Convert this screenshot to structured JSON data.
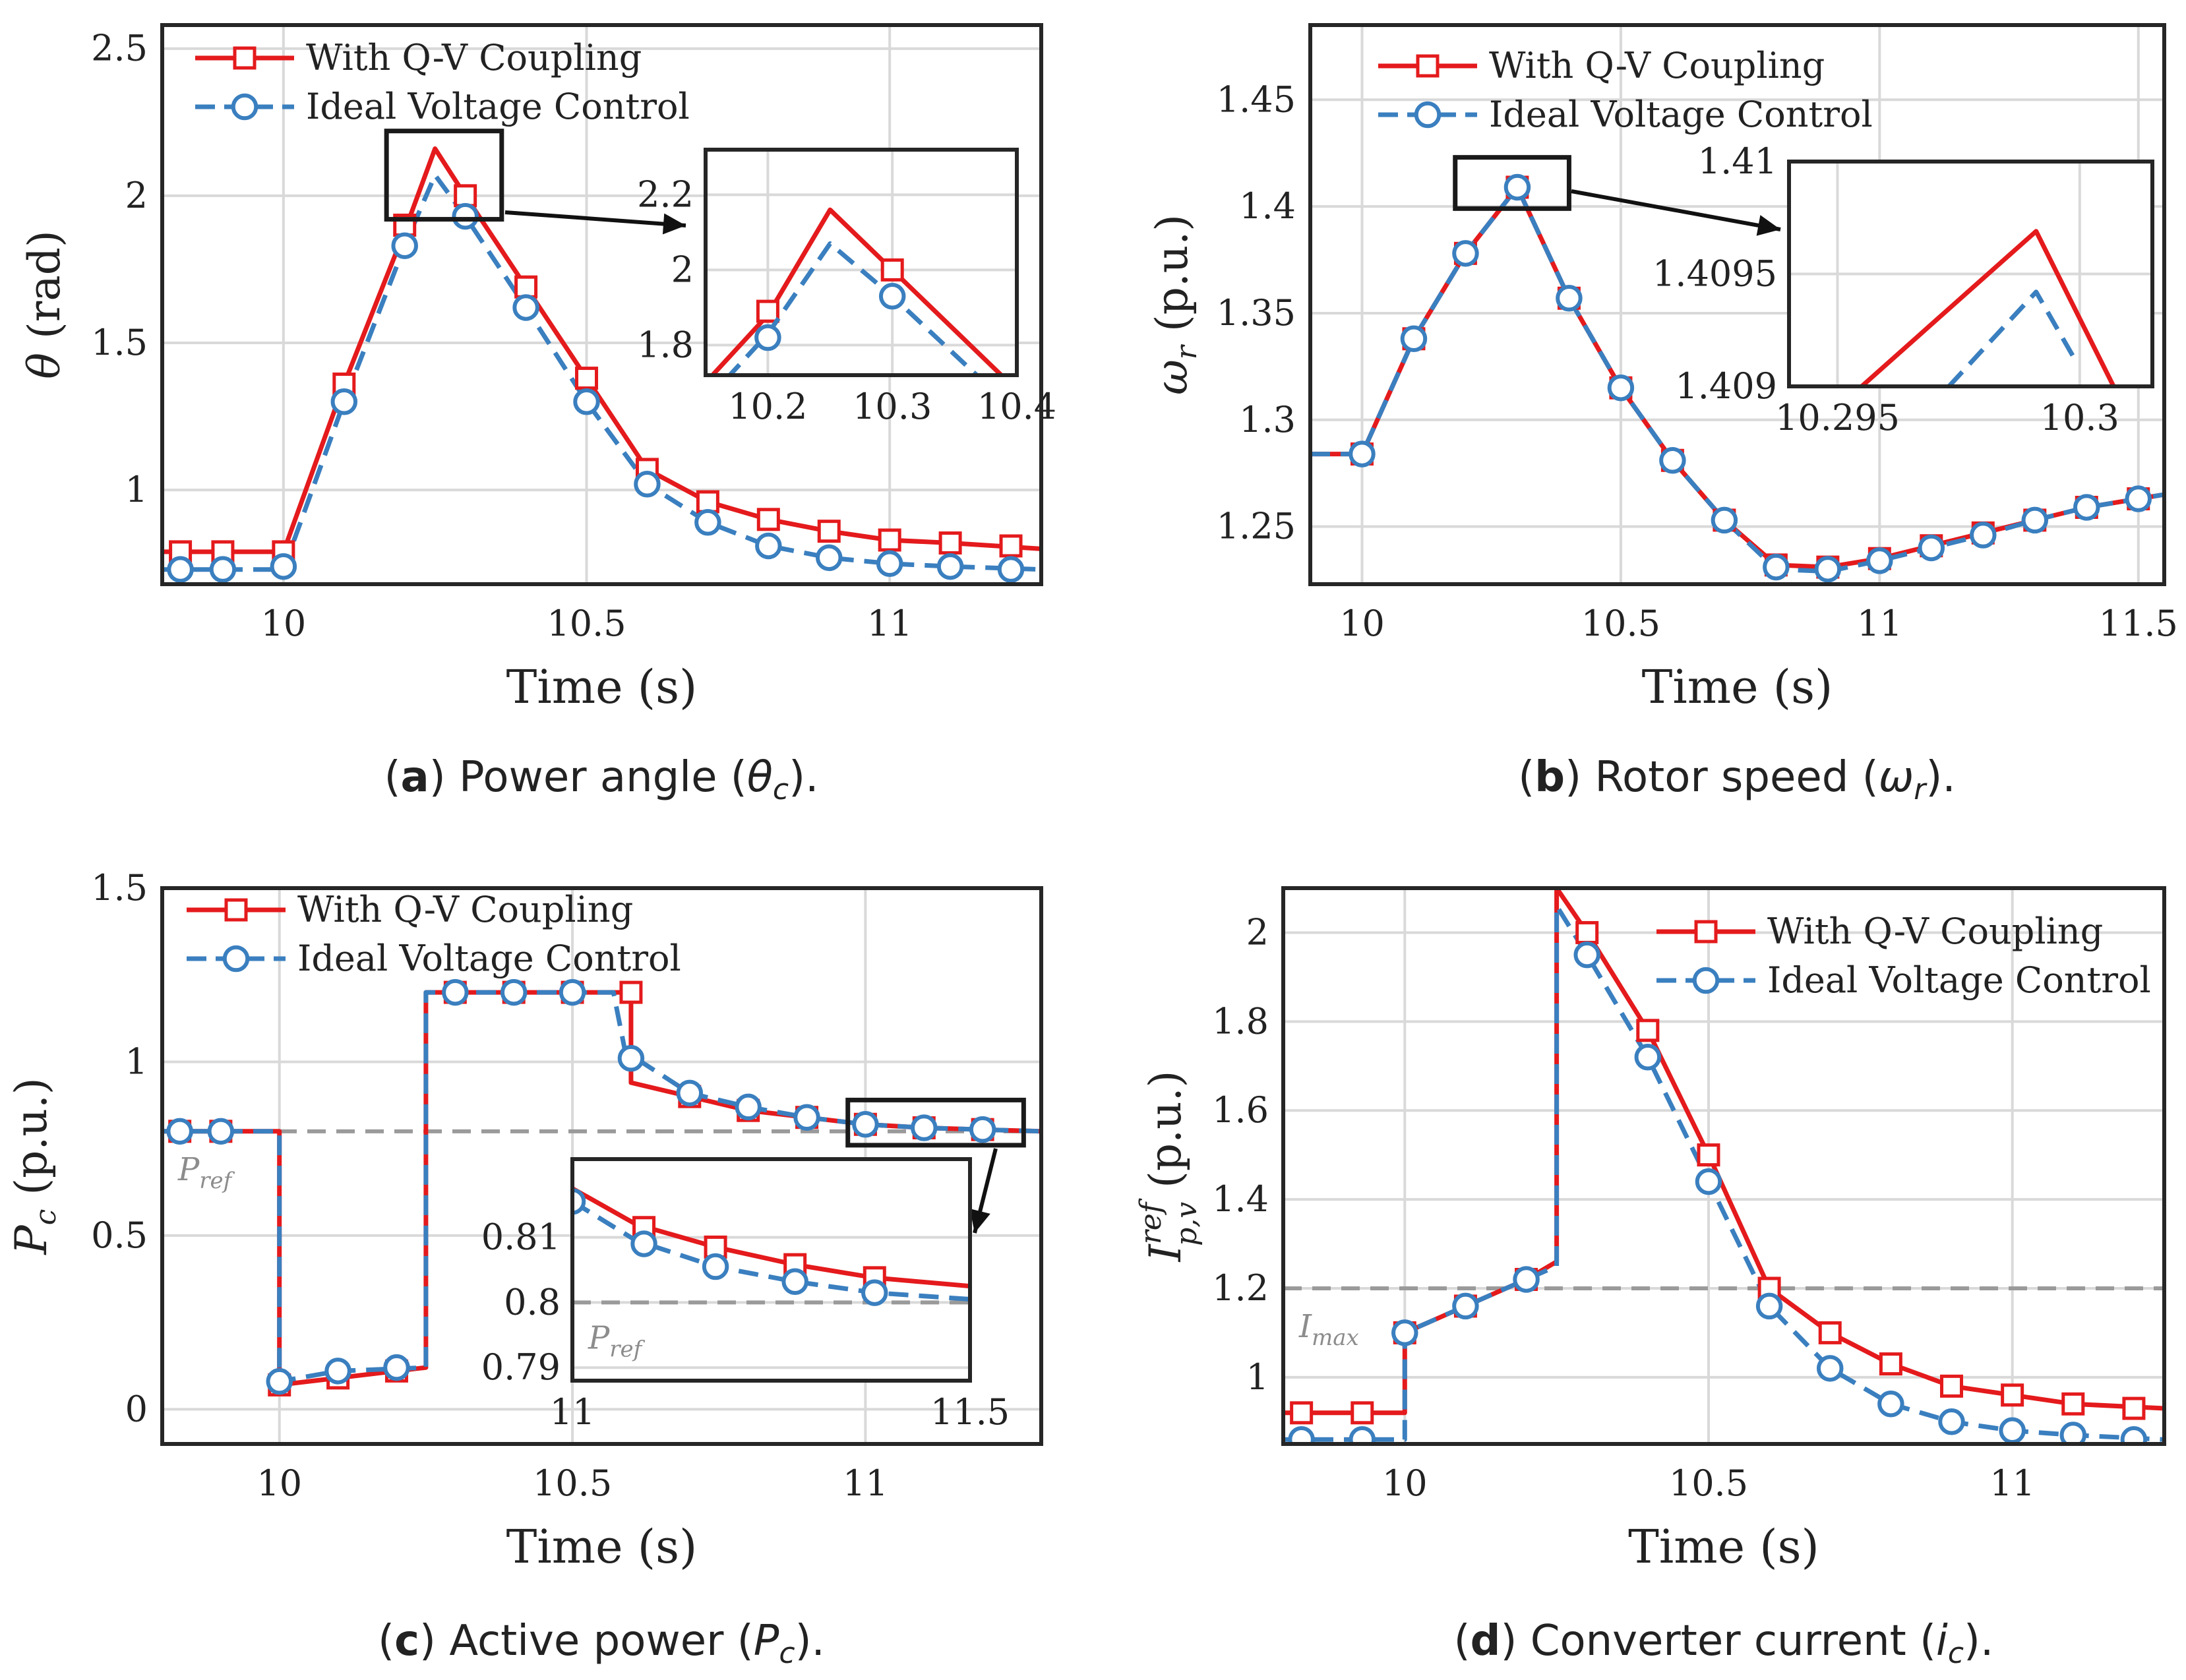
{
  "colors": {
    "coupling": "#e41a1c",
    "ideal": "#3a7fbf",
    "grid": "#d9d9d9",
    "ref_line": "#9a9a9a",
    "axis": "#262626"
  },
  "legend": {
    "coupling": "With Q-V Coupling",
    "ideal": "Ideal Voltage Control"
  },
  "captions": {
    "a": {
      "tag": "(a)",
      "text": " Power angle (",
      "sym": "θ",
      "sub": "c",
      "end": ")."
    },
    "b": {
      "tag": "(b)",
      "text": " Rotor speed (",
      "sym": "ω",
      "sub": "r",
      "end": ")."
    },
    "c": {
      "tag": "(c)",
      "text": " Active power (",
      "sym": "P",
      "sub": "c",
      "end": ")."
    },
    "d": {
      "tag": "(d)",
      "text": " Converter current (",
      "sym": "i",
      "sub": "c",
      "end": ")."
    }
  },
  "chart_data": [
    {
      "id": "a",
      "type": "line",
      "title": "Power angle",
      "xlabel": "Time (s)",
      "ylabel": {
        "sym": "θ",
        "sub": "",
        "unit": " (rad)"
      },
      "xlim": [
        9.8,
        11.25
      ],
      "ylim": [
        0.68,
        2.58
      ],
      "xticks": [
        10,
        10.5,
        11
      ],
      "xticklabels": [
        "10",
        "10.5",
        "11"
      ],
      "yticks": [
        1,
        1.5,
        2,
        2.5
      ],
      "yticklabels": [
        "1",
        "1.5",
        "2",
        "2.5"
      ],
      "legend_loc": "top-left",
      "series": [
        {
          "name": "With Q-V Coupling",
          "style": "solid",
          "marker": "square",
          "x": [
            9.8,
            10.0,
            10.1,
            10.2,
            10.25,
            10.3,
            10.4,
            10.5,
            10.6,
            10.7,
            10.8,
            10.9,
            11.0,
            11.1,
            11.25
          ],
          "y": [
            0.79,
            0.79,
            1.36,
            1.88,
            2.16,
            2.0,
            1.69,
            1.38,
            1.07,
            0.96,
            0.9,
            0.86,
            0.83,
            0.82,
            0.8
          ],
          "markers_x": [
            9.83,
            9.9,
            10.0,
            10.1,
            10.2,
            10.3,
            10.4,
            10.5,
            10.6,
            10.7,
            10.8,
            10.9,
            11.0,
            11.1,
            11.2
          ],
          "markers_y": [
            0.79,
            0.79,
            0.79,
            1.36,
            1.9,
            2.0,
            1.69,
            1.38,
            1.07,
            0.96,
            0.9,
            0.86,
            0.83,
            0.82,
            0.81
          ]
        },
        {
          "name": "Ideal Voltage Control",
          "style": "dashed",
          "marker": "circle",
          "x": [
            9.8,
            10.0,
            10.1,
            10.2,
            10.25,
            10.3,
            10.4,
            10.5,
            10.6,
            10.7,
            10.8,
            10.9,
            11.0,
            11.1,
            11.25
          ],
          "y": [
            0.73,
            0.73,
            1.3,
            1.83,
            2.07,
            1.93,
            1.62,
            1.3,
            1.02,
            0.89,
            0.81,
            0.77,
            0.75,
            0.74,
            0.73
          ],
          "markers_x": [
            9.83,
            9.9,
            10.0,
            10.1,
            10.2,
            10.3,
            10.4,
            10.5,
            10.6,
            10.7,
            10.8,
            10.9,
            11.0,
            11.1,
            11.2
          ],
          "markers_y": [
            0.73,
            0.73,
            0.74,
            1.3,
            1.83,
            1.93,
            1.62,
            1.3,
            1.02,
            0.89,
            0.81,
            0.77,
            0.75,
            0.74,
            0.73
          ]
        }
      ],
      "zoom_box": {
        "x": [
          10.17,
          10.36
        ],
        "y": [
          1.92,
          2.22
        ]
      },
      "inset": {
        "xlim": [
          10.15,
          10.4
        ],
        "ylim": [
          1.72,
          2.32
        ],
        "xticks": [
          10.2,
          10.3,
          10.4
        ],
        "xticklabels": [
          "10.2",
          "10.3",
          "10.4"
        ],
        "yticks": [
          1.8,
          2.0,
          2.2
        ],
        "yticklabels": [
          "1.8",
          "2",
          "2.2"
        ],
        "series": [
          {
            "x": [
              10.15,
              10.2,
              10.25,
              10.3,
              10.4
            ],
            "y": [
              1.7,
              1.88,
              2.16,
              2.0,
              1.68
            ],
            "markers_x": [
              10.2,
              10.3
            ],
            "markers_y": [
              1.89,
              2.0
            ]
          },
          {
            "x": [
              10.15,
              10.2,
              10.25,
              10.3,
              10.4
            ],
            "y": [
              1.65,
              1.83,
              2.07,
              1.93,
              1.62
            ],
            "markers_x": [
              10.2,
              10.3
            ],
            "markers_y": [
              1.82,
              1.93
            ]
          }
        ]
      }
    },
    {
      "id": "b",
      "type": "line",
      "title": "Rotor speed",
      "xlabel": "Time (s)",
      "ylabel": {
        "sym": "ω",
        "sub": "r",
        "unit": " (p.u.)"
      },
      "xlim": [
        9.9,
        11.55
      ],
      "ylim": [
        1.223,
        1.485
      ],
      "xticks": [
        10,
        10.5,
        11,
        11.5
      ],
      "xticklabels": [
        "10",
        "10.5",
        "11",
        "11.5"
      ],
      "yticks": [
        1.25,
        1.3,
        1.35,
        1.4,
        1.45
      ],
      "yticklabels": [
        "1.25",
        "1.3",
        "1.35",
        "1.4",
        "1.45"
      ],
      "legend_loc": "top-left",
      "series": [
        {
          "name": "With Q-V Coupling",
          "style": "solid",
          "marker": "square",
          "x": [
            9.9,
            10.0,
            10.1,
            10.2,
            10.3,
            10.4,
            10.5,
            10.6,
            10.7,
            10.8,
            10.9,
            11.0,
            11.1,
            11.2,
            11.3,
            11.4,
            11.5,
            11.55
          ],
          "y": [
            1.284,
            1.284,
            1.338,
            1.378,
            1.409,
            1.357,
            1.315,
            1.281,
            1.253,
            1.232,
            1.231,
            1.235,
            1.241,
            1.247,
            1.253,
            1.259,
            1.263,
            1.265
          ],
          "markers_x": [
            10.0,
            10.1,
            10.2,
            10.3,
            10.4,
            10.5,
            10.6,
            10.7,
            10.8,
            10.9,
            11.0,
            11.1,
            11.2,
            11.3,
            11.4,
            11.5
          ],
          "markers_y": [
            1.284,
            1.338,
            1.378,
            1.409,
            1.357,
            1.315,
            1.281,
            1.253,
            1.232,
            1.231,
            1.235,
            1.241,
            1.247,
            1.253,
            1.259,
            1.263
          ]
        },
        {
          "name": "Ideal Voltage Control",
          "style": "dashed",
          "marker": "circle",
          "x": [
            9.9,
            10.0,
            10.1,
            10.2,
            10.3,
            10.4,
            10.5,
            10.6,
            10.7,
            10.8,
            10.9,
            11.0,
            11.1,
            11.2,
            11.3,
            11.4,
            11.5,
            11.55
          ],
          "y": [
            1.284,
            1.284,
            1.338,
            1.378,
            1.409,
            1.357,
            1.315,
            1.281,
            1.253,
            1.23,
            1.229,
            1.234,
            1.24,
            1.246,
            1.253,
            1.259,
            1.263,
            1.265
          ],
          "markers_x": [
            10.0,
            10.1,
            10.2,
            10.3,
            10.4,
            10.5,
            10.6,
            10.7,
            10.8,
            10.9,
            11.0,
            11.1,
            11.2,
            11.3,
            11.4,
            11.5
          ],
          "markers_y": [
            1.284,
            1.338,
            1.378,
            1.409,
            1.357,
            1.315,
            1.281,
            1.253,
            1.231,
            1.23,
            1.234,
            1.24,
            1.246,
            1.253,
            1.259,
            1.263
          ]
        }
      ],
      "zoom_box": {
        "x": [
          10.18,
          10.4
        ],
        "y": [
          1.399,
          1.423
        ]
      },
      "inset": {
        "xlim": [
          10.294,
          10.3015
        ],
        "ylim": [
          1.409,
          1.41
        ],
        "xticks": [
          10.295,
          10.3
        ],
        "xticklabels": [
          "10.295",
          "10.3"
        ],
        "yticks": [
          1.409,
          1.4095,
          1.41
        ],
        "yticklabels": [
          "1.409",
          "1.4095",
          "1.41"
        ],
        "series": [
          {
            "x": [
              10.2955,
              10.2991,
              10.3007
            ],
            "y": [
              1.409,
              1.40969,
              1.409
            ]
          },
          {
            "x": [
              10.2973,
              10.2991,
              10.2999
            ],
            "y": [
              1.409,
              1.40942,
              1.40912
            ]
          }
        ]
      }
    },
    {
      "id": "c",
      "type": "line",
      "title": "Active power",
      "xlabel": "Time (s)",
      "ylabel": {
        "sym": "P",
        "sub": "c",
        "unit": " (p.u.)"
      },
      "xlim": [
        9.8,
        11.3
      ],
      "ylim": [
        -0.1,
        1.5
      ],
      "xticks": [
        10,
        10.5,
        11
      ],
      "xticklabels": [
        "10",
        "10.5",
        "11"
      ],
      "yticks": [
        0,
        0.5,
        1,
        1.5
      ],
      "yticklabels": [
        "0",
        "0.5",
        "1",
        "1.5"
      ],
      "legend_loc": "top-left",
      "ref_line": {
        "y": 0.8,
        "label": "P",
        "label_sub": "ref"
      },
      "series": [
        {
          "name": "With Q-V Coupling",
          "style": "solid",
          "marker": "square",
          "x": [
            9.8,
            10.0,
            10.0,
            10.1,
            10.25,
            10.25,
            10.6,
            10.6,
            10.7,
            10.8,
            10.9,
            11.0,
            11.1,
            11.2,
            11.3
          ],
          "y": [
            0.8,
            0.8,
            0.07,
            0.09,
            0.12,
            1.2,
            1.2,
            0.94,
            0.9,
            0.86,
            0.84,
            0.82,
            0.81,
            0.805,
            0.8
          ],
          "markers_x": [
            9.83,
            9.9,
            10.0,
            10.1,
            10.2,
            10.3,
            10.4,
            10.5,
            10.6,
            10.7,
            10.8,
            10.9,
            11.0,
            11.1,
            11.2
          ],
          "markers_y": [
            0.8,
            0.8,
            0.07,
            0.09,
            0.11,
            1.2,
            1.2,
            1.2,
            1.2,
            0.9,
            0.86,
            0.84,
            0.82,
            0.81,
            0.805
          ]
        },
        {
          "name": "Ideal Voltage Control",
          "style": "dashed",
          "marker": "circle",
          "x": [
            9.8,
            10.0,
            10.0,
            10.1,
            10.25,
            10.25,
            10.57,
            10.59,
            10.7,
            10.8,
            10.9,
            11.0,
            11.1,
            11.2,
            11.3
          ],
          "y": [
            0.8,
            0.8,
            0.08,
            0.11,
            0.12,
            1.2,
            1.2,
            1.03,
            0.91,
            0.87,
            0.84,
            0.82,
            0.81,
            0.805,
            0.8
          ],
          "markers_x": [
            9.83,
            9.9,
            10.0,
            10.1,
            10.2,
            10.3,
            10.4,
            10.5,
            10.6,
            10.7,
            10.8,
            10.9,
            11.0,
            11.1,
            11.2
          ],
          "markers_y": [
            0.8,
            0.8,
            0.08,
            0.11,
            0.12,
            1.2,
            1.2,
            1.2,
            1.01,
            0.91,
            0.87,
            0.84,
            0.82,
            0.81,
            0.805
          ]
        }
      ],
      "zoom_box": {
        "x": [
          10.97,
          11.27
        ],
        "y": [
          0.76,
          0.89
        ]
      },
      "inset": {
        "xlim": [
          11.0,
          11.5
        ],
        "ylim": [
          0.788,
          0.822
        ],
        "xticks": [
          11.0,
          11.5
        ],
        "xticklabels": [
          "11",
          "11.5"
        ],
        "yticks": [
          0.79,
          0.8,
          0.81
        ],
        "yticklabels": [
          "0.79",
          "0.8",
          "0.81"
        ],
        "ref_y": 0.8,
        "series": [
          {
            "x": [
              11.0,
              11.08,
              11.18,
              11.28,
              11.38,
              11.5
            ],
            "y": [
              0.8175,
              0.812,
              0.8085,
              0.8058,
              0.8038,
              0.8025
            ],
            "markers_x": [
              11.09,
              11.18,
              11.28,
              11.38
            ],
            "markers_y": [
              0.8115,
              0.8085,
              0.8058,
              0.8038
            ]
          },
          {
            "x": [
              11.0,
              11.08,
              11.18,
              11.28,
              11.38,
              11.5
            ],
            "y": [
              0.8155,
              0.8095,
              0.8055,
              0.8032,
              0.8015,
              0.8005
            ],
            "markers_x": [
              11.0,
              11.09,
              11.18,
              11.28,
              11.38
            ],
            "markers_y": [
              0.8155,
              0.809,
              0.8055,
              0.8032,
              0.8015
            ]
          }
        ]
      }
    },
    {
      "id": "d",
      "type": "line",
      "title": "Converter current",
      "xlabel": "Time (s)",
      "ylabel": {
        "sym": "I",
        "sub": "p,v",
        "sup": "ref",
        "unit": " (p.u.)"
      },
      "xlim": [
        9.8,
        11.25
      ],
      "ylim": [
        0.85,
        2.1
      ],
      "xticks": [
        10,
        10.5,
        11
      ],
      "xticklabels": [
        "10",
        "10.5",
        "11"
      ],
      "yticks": [
        1,
        1.2,
        1.4,
        1.6,
        1.8,
        2
      ],
      "yticklabels": [
        "1",
        "1.2",
        "1.4",
        "1.6",
        "1.8",
        "2"
      ],
      "legend_loc": "top-right",
      "ref_line": {
        "y": 1.2,
        "label": "I",
        "label_sub": "max"
      },
      "series": [
        {
          "name": "With Q-V Coupling",
          "style": "solid",
          "marker": "square",
          "x": [
            9.8,
            10.0,
            10.0,
            10.1,
            10.2,
            10.25,
            10.25,
            10.3,
            10.4,
            10.5,
            10.6,
            10.7,
            10.8,
            10.9,
            11.0,
            11.1,
            11.25
          ],
          "y": [
            0.92,
            0.92,
            1.1,
            1.16,
            1.22,
            1.26,
            2.1,
            2.0,
            1.78,
            1.5,
            1.2,
            1.1,
            1.03,
            0.98,
            0.96,
            0.94,
            0.93
          ],
          "markers_x": [
            9.83,
            9.93,
            10.0,
            10.1,
            10.2,
            10.3,
            10.4,
            10.5,
            10.6,
            10.7,
            10.8,
            10.9,
            11.0,
            11.1,
            11.2
          ],
          "markers_y": [
            0.92,
            0.92,
            1.1,
            1.16,
            1.22,
            2.0,
            1.78,
            1.5,
            1.2,
            1.1,
            1.03,
            0.98,
            0.96,
            0.94,
            0.93
          ]
        },
        {
          "name": "Ideal Voltage Control",
          "style": "dashed",
          "marker": "circle",
          "x": [
            9.8,
            10.0,
            10.0,
            10.1,
            10.2,
            10.25,
            10.25,
            10.3,
            10.4,
            10.5,
            10.6,
            10.7,
            10.8,
            10.9,
            11.0,
            11.1,
            11.25
          ],
          "y": [
            0.86,
            0.86,
            1.1,
            1.16,
            1.22,
            1.25,
            2.06,
            1.95,
            1.72,
            1.44,
            1.16,
            1.02,
            0.94,
            0.9,
            0.88,
            0.87,
            0.86
          ],
          "markers_x": [
            9.83,
            9.93,
            10.0,
            10.1,
            10.2,
            10.3,
            10.4,
            10.5,
            10.6,
            10.7,
            10.8,
            10.9,
            11.0,
            11.1,
            11.2
          ],
          "markers_y": [
            0.86,
            0.86,
            1.1,
            1.16,
            1.22,
            1.95,
            1.72,
            1.44,
            1.16,
            1.02,
            0.94,
            0.9,
            0.88,
            0.87,
            0.86
          ]
        }
      ]
    }
  ]
}
